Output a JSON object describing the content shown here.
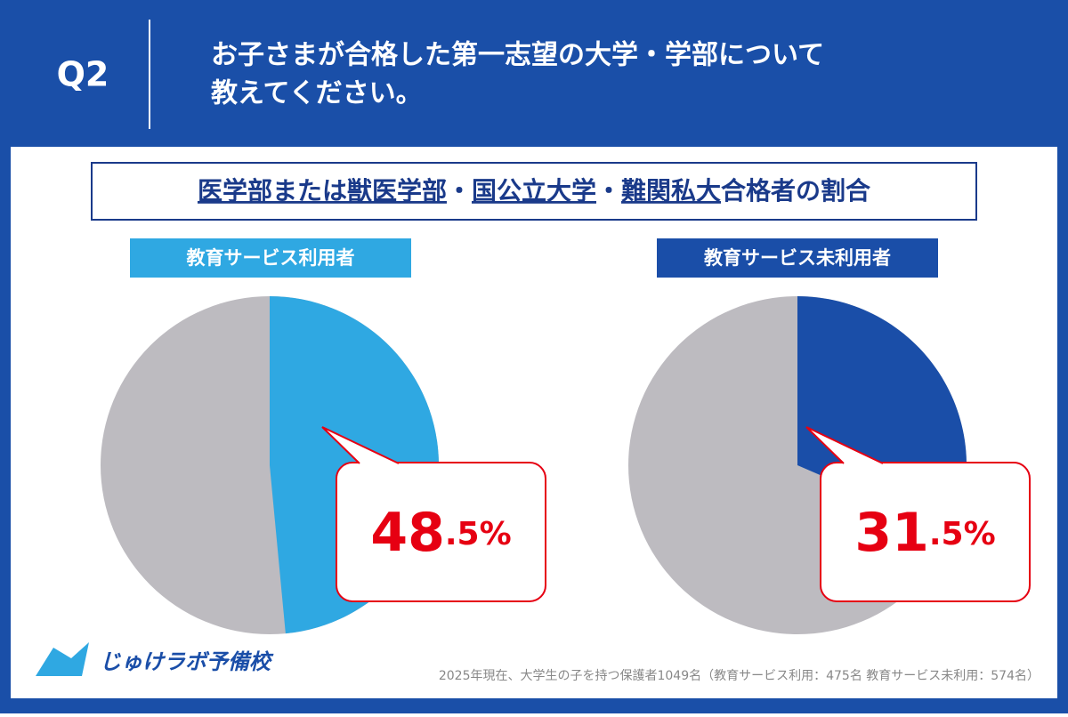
{
  "header": {
    "badge": "Q2",
    "title_lines": [
      "お子さまが合格した第一志望の大学・学部について",
      "教えてください。"
    ]
  },
  "subtitle_parts": [
    {
      "text": "医学部または獣医学部",
      "underline": true
    },
    {
      "text": "・",
      "underline": false
    },
    {
      "text": "国公立大学",
      "underline": true
    },
    {
      "text": "・",
      "underline": false
    },
    {
      "text": "難関私大",
      "underline": true
    },
    {
      "text": "合格者の割合",
      "underline": false
    }
  ],
  "chart_data": [
    {
      "type": "pie",
      "title": "教育サービス利用者",
      "values": [
        48.5
      ],
      "value_labels": [
        "48.5%"
      ],
      "color": "#2fa8e2",
      "rest_color": "#bdbbc0"
    },
    {
      "type": "pie",
      "title": "教育サービス未利用者",
      "values": [
        31.5
      ],
      "value_labels": [
        "31.5%"
      ],
      "color": "#1a4ea8",
      "rest_color": "#bdbbc0"
    }
  ],
  "logo": "じゅけラボ予備校",
  "footnote": "2025年現在、大学生の子を持つ保護者1049名（教育サービス利用：475名 教育サービス未利用：574名）"
}
